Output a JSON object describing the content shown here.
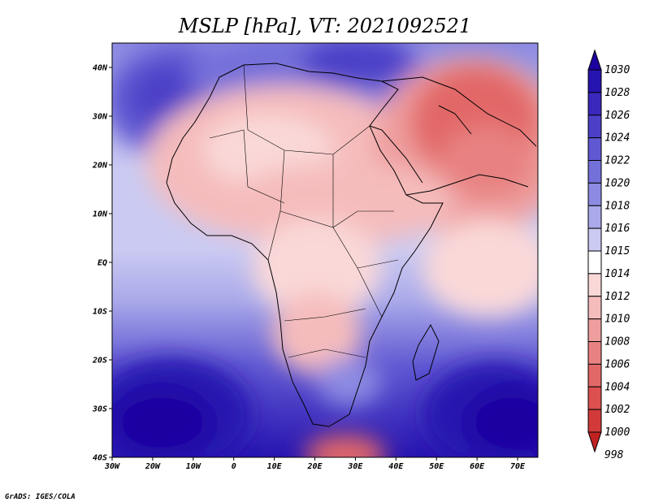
{
  "chart_data": {
    "type": "heatmap",
    "title": "MSLP [hPa], VT: 2021092521",
    "x_axis": {
      "label": "",
      "range": [
        -30,
        75
      ],
      "ticks": [
        {
          "value": -30,
          "label": "30W"
        },
        {
          "value": -20,
          "label": "20W"
        },
        {
          "value": -10,
          "label": "10W"
        },
        {
          "value": 0,
          "label": "0"
        },
        {
          "value": 10,
          "label": "10E"
        },
        {
          "value": 20,
          "label": "20E"
        },
        {
          "value": 30,
          "label": "30E"
        },
        {
          "value": 40,
          "label": "40E"
        },
        {
          "value": 50,
          "label": "50E"
        },
        {
          "value": 60,
          "label": "60E"
        },
        {
          "value": 70,
          "label": "70E"
        }
      ]
    },
    "y_axis": {
      "label": "",
      "range": [
        -40,
        45
      ],
      "ticks": [
        {
          "value": 40,
          "label": "40N"
        },
        {
          "value": 30,
          "label": "30N"
        },
        {
          "value": 20,
          "label": "20N"
        },
        {
          "value": 10,
          "label": "10N"
        },
        {
          "value": 0,
          "label": "EQ"
        },
        {
          "value": -10,
          "label": "10S"
        },
        {
          "value": -20,
          "label": "20S"
        },
        {
          "value": -30,
          "label": "30S"
        },
        {
          "value": -40,
          "label": "40S"
        }
      ]
    },
    "colorbar": {
      "levels": [
        {
          "value": "1030",
          "color": "#1e00a0"
        },
        {
          "value": "1028",
          "color": "#2614b0"
        },
        {
          "value": "1026",
          "color": "#3a28bc"
        },
        {
          "value": "1024",
          "color": "#4c40c8"
        },
        {
          "value": "1022",
          "color": "#6058d2"
        },
        {
          "value": "1020",
          "color": "#7470da"
        },
        {
          "value": "1018",
          "color": "#8c8ae2"
        },
        {
          "value": "1016",
          "color": "#aaaaea"
        },
        {
          "value": "1015",
          "color": "#cacaf2"
        },
        {
          "value": "1014",
          "color": "#ffffff"
        },
        {
          "value": "1012",
          "color": "#fad8d8"
        },
        {
          "value": "1010",
          "color": "#f5bcbc"
        },
        {
          "value": "1008",
          "color": "#ee9e9e"
        },
        {
          "value": "1006",
          "color": "#e88282"
        },
        {
          "value": "1004",
          "color": "#e26868"
        },
        {
          "value": "1002",
          "color": "#dc5050"
        },
        {
          "value": "1000",
          "color": "#d23a3a"
        },
        {
          "value": "998",
          "color": "#c02222"
        }
      ]
    },
    "credit": "GrADS: IGES/COLA"
  }
}
